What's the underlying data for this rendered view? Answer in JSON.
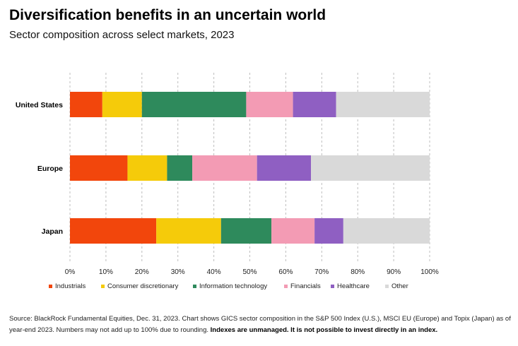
{
  "title": "Diversification benefits in an uncertain world",
  "subtitle": "Sector composition across select markets, 2023",
  "chart_data": {
    "type": "bar",
    "orientation": "horizontal",
    "stacked": true,
    "categories": [
      "United States",
      "Europe",
      "Japan"
    ],
    "series": [
      {
        "name": "Industrials",
        "color": "#f2460c",
        "values": [
          9,
          16,
          24
        ]
      },
      {
        "name": "Consumer discretionary",
        "color": "#f5cb0a",
        "values": [
          11,
          11,
          18
        ]
      },
      {
        "name": "Information technology",
        "color": "#2e8a5c",
        "values": [
          29,
          7,
          14
        ]
      },
      {
        "name": "Financials",
        "color": "#f39bb4",
        "values": [
          13,
          18,
          12
        ]
      },
      {
        "name": "Healthcare",
        "color": "#8f5fc2",
        "values": [
          12,
          15,
          8
        ]
      },
      {
        "name": "Other",
        "color": "#d9d9d9",
        "values": [
          26,
          33,
          24
        ]
      }
    ],
    "xlim": [
      0,
      100
    ],
    "x_ticks": [
      "0%",
      "10%",
      "20%",
      "30%",
      "40%",
      "50%",
      "60%",
      "70%",
      "80%",
      "90%",
      "100%"
    ],
    "xlabel": "",
    "ylabel": "",
    "grid": "vertical dashed",
    "legend": "bottom"
  },
  "footnote": {
    "text": "Source: BlackRock Fundamental Equities, Dec. 31, 2023. Chart shows GICS sector composition in the S&P 500 Index (U.S.), MSCI EU (Europe) and Topix (Japan) as of year-end 2023. Numbers may not add up to 100% due to rounding. ",
    "bold": "Indexes are unmanaged. It is not possible to invest directly in an index."
  }
}
